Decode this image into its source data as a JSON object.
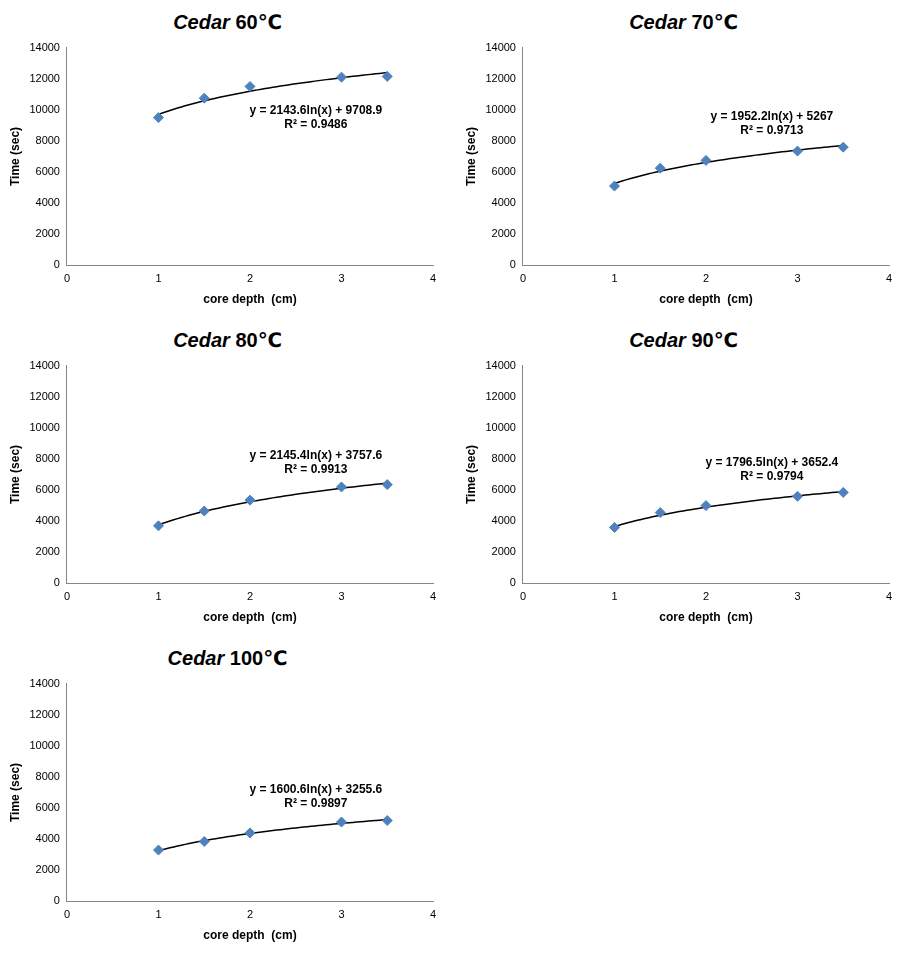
{
  "chart_data": [
    {
      "type": "scatter",
      "title": "Cedar 60℃",
      "x_label": "core depth  (cm)",
      "y_label": "Time (sec)",
      "x": [
        1,
        1.5,
        2,
        3,
        3.5
      ],
      "values": [
        9500,
        10750,
        11500,
        12100,
        12150
      ],
      "color": "#4f81bd",
      "marker": "diamond",
      "grid": false,
      "xlim": [
        0,
        4
      ],
      "xticks": [
        0,
        1,
        2,
        3,
        4
      ],
      "ylim": [
        0,
        14000
      ],
      "yticks": [
        0,
        2000,
        4000,
        6000,
        8000,
        10000,
        12000,
        14000
      ],
      "trendline": {
        "type": "log",
        "a": 2143.6,
        "b": 9708.9
      },
      "annotations": [
        "y = 2143.6ln(x) + 9708.9",
        "R² = 0.9486"
      ]
    },
    {
      "type": "scatter",
      "title": "Cedar 70℃",
      "x_label": "core depth  (cm)",
      "y_label": "Time (sec)",
      "x": [
        1,
        1.5,
        2,
        3,
        3.5
      ],
      "values": [
        5100,
        6250,
        6750,
        7350,
        7600
      ],
      "color": "#4f81bd",
      "marker": "diamond",
      "grid": false,
      "xlim": [
        0,
        4
      ],
      "xticks": [
        0,
        1,
        2,
        3,
        4
      ],
      "ylim": [
        0,
        14000
      ],
      "yticks": [
        0,
        2000,
        4000,
        6000,
        8000,
        10000,
        12000,
        14000
      ],
      "trendline": {
        "type": "log",
        "a": 1952.2,
        "b": 5267
      },
      "annotations": [
        "y = 1952.2ln(x) + 5267",
        "R² = 0.9713"
      ]
    },
    {
      "type": "scatter",
      "title": "Cedar 80℃",
      "x_label": "core depth  (cm)",
      "y_label": "Time (sec)",
      "x": [
        1,
        1.5,
        2,
        3,
        3.5
      ],
      "values": [
        3700,
        4650,
        5350,
        6200,
        6350
      ],
      "color": "#4f81bd",
      "marker": "diamond",
      "grid": false,
      "xlim": [
        0,
        4
      ],
      "xticks": [
        0,
        1,
        2,
        3,
        4
      ],
      "ylim": [
        0,
        14000
      ],
      "yticks": [
        0,
        2000,
        4000,
        6000,
        8000,
        10000,
        12000,
        14000
      ],
      "trendline": {
        "type": "log",
        "a": 2145.4,
        "b": 3757.6
      },
      "annotations": [
        "y = 2145.4ln(x) + 3757.6",
        "R² = 0.9913"
      ]
    },
    {
      "type": "scatter",
      "title": "Cedar 90℃",
      "x_label": "core depth  (cm)",
      "y_label": "Time (sec)",
      "x": [
        1,
        1.5,
        2,
        3,
        3.5
      ],
      "values": [
        3600,
        4550,
        5000,
        5600,
        5850
      ],
      "color": "#4f81bd",
      "marker": "diamond",
      "grid": false,
      "xlim": [
        0,
        4
      ],
      "xticks": [
        0,
        1,
        2,
        3,
        4
      ],
      "ylim": [
        0,
        14000
      ],
      "yticks": [
        0,
        2000,
        4000,
        6000,
        8000,
        10000,
        12000,
        14000
      ],
      "trendline": {
        "type": "log",
        "a": 1796.5,
        "b": 3652.4
      },
      "annotations": [
        "y = 1796.5ln(x) + 3652.4",
        "R² = 0.9794"
      ]
    },
    {
      "type": "scatter",
      "title": "Cedar 100℃",
      "x_label": "core depth  (cm)",
      "y_label": "Time (sec)",
      "x": [
        1,
        1.5,
        2,
        3,
        3.5
      ],
      "values": [
        3300,
        3850,
        4400,
        5100,
        5200
      ],
      "color": "#4f81bd",
      "marker": "diamond",
      "grid": false,
      "xlim": [
        0,
        4
      ],
      "xticks": [
        0,
        1,
        2,
        3,
        4
      ],
      "ylim": [
        0,
        14000
      ],
      "yticks": [
        0,
        2000,
        4000,
        6000,
        8000,
        10000,
        12000,
        14000
      ],
      "trendline": {
        "type": "log",
        "a": 1600.6,
        "b": 3255.6
      },
      "annotations": [
        "y = 1600.6ln(x) + 3255.6",
        "R² = 0.9897"
      ]
    }
  ]
}
